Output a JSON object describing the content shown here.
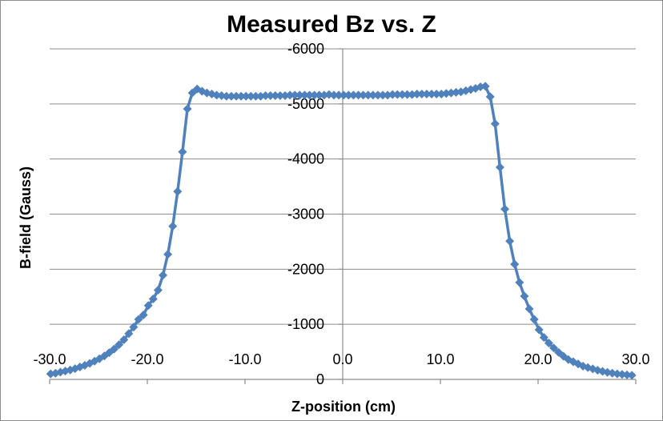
{
  "chart_data": {
    "type": "scatter",
    "title": "Measured Bz vs. Z",
    "xlabel": "Z-position (cm)",
    "ylabel": "B-field (Gauss)",
    "xlim": [
      -30,
      30
    ],
    "ylim": [
      0,
      -6000
    ],
    "y_axis_reversed": true,
    "grid": "horizontal major gridlines",
    "legend": "none",
    "line_color": "#4f81bd",
    "marker": "diamond",
    "x_ticks": [
      "-30.0",
      "-20.0",
      "-10.0",
      "0.0",
      "10.0",
      "20.0",
      "30.0"
    ],
    "y_ticks": [
      "0",
      "-1000",
      "-2000",
      "-3000",
      "-4000",
      "-5000",
      "-6000"
    ],
    "series": [
      {
        "x": [
          -29.9,
          -29.4,
          -28.9,
          -28.4,
          -27.9,
          -27.4,
          -26.9,
          -26.4,
          -25.9,
          -25.4,
          -24.9,
          -24.4,
          -23.9,
          -23.4,
          -22.9,
          -22.4,
          -21.9,
          -21.4,
          -20.9,
          -20.4,
          -19.9,
          -19.4,
          -18.9,
          -18.4,
          -17.9,
          -17.4,
          -16.9,
          -16.4,
          -15.9,
          -15.4,
          -14.9,
          -14.4,
          -13.9,
          -13.4,
          -12.9,
          -12.4,
          -11.9,
          -11.4,
          -10.9,
          -10.4,
          -9.9,
          -9.4,
          -8.9,
          -8.4,
          -7.9,
          -7.4,
          -6.9,
          -6.4,
          -5.9,
          -5.4,
          -4.9,
          -4.4,
          -3.9,
          -3.4,
          -2.9,
          -2.4,
          -1.9,
          -1.4,
          -0.9,
          -0.4,
          0.1,
          0.6,
          1.1,
          1.6,
          2.1,
          2.6,
          3.1,
          3.6,
          4.1,
          4.6,
          5.1,
          5.6,
          6.1,
          6.6,
          7.1,
          7.6,
          8.1,
          8.6,
          9.1,
          9.6,
          10.1,
          10.6,
          11.1,
          11.6,
          12.1,
          12.6,
          13.1,
          13.6,
          14.1,
          14.6,
          15.1,
          15.6,
          16.1,
          16.6,
          17.1,
          17.6,
          18.1,
          18.6,
          19.1,
          19.6,
          20.1,
          20.6,
          21.1,
          21.6,
          22.1,
          22.6,
          23.1,
          23.6,
          24.1,
          24.6,
          25.1,
          25.6,
          26.1,
          26.6,
          27.1,
          27.6,
          28.1,
          28.6,
          29.1,
          29.6
        ],
        "y": [
          -100,
          -110,
          -130,
          -150,
          -170,
          -195,
          -225,
          -255,
          -290,
          -330,
          -375,
          -425,
          -485,
          -550,
          -630,
          -720,
          -830,
          -950,
          -1090,
          -1170,
          -1340,
          -1460,
          -1620,
          -1890,
          -2270,
          -2780,
          -3410,
          -4130,
          -4910,
          -5200,
          -5270,
          -5230,
          -5200,
          -5180,
          -5160,
          -5150,
          -5140,
          -5140,
          -5140,
          -5140,
          -5140,
          -5140,
          -5140,
          -5140,
          -5150,
          -5150,
          -5150,
          -5150,
          -5150,
          -5160,
          -5160,
          -5160,
          -5160,
          -5160,
          -5160,
          -5160,
          -5160,
          -5170,
          -5160,
          -5160,
          -5160,
          -5160,
          -5160,
          -5160,
          -5160,
          -5160,
          -5160,
          -5160,
          -5160,
          -5160,
          -5170,
          -5170,
          -5170,
          -5170,
          -5170,
          -5180,
          -5180,
          -5180,
          -5180,
          -5180,
          -5180,
          -5190,
          -5200,
          -5210,
          -5220,
          -5240,
          -5260,
          -5280,
          -5310,
          -5320,
          -5130,
          -4640,
          -3850,
          -3090,
          -2510,
          -2090,
          -1760,
          -1510,
          -1280,
          -1090,
          -900,
          -760,
          -660,
          -570,
          -490,
          -420,
          -360,
          -320,
          -280,
          -240,
          -215,
          -190,
          -165,
          -145,
          -128,
          -112,
          -100,
          -90,
          -82,
          -75
        ]
      }
    ]
  }
}
